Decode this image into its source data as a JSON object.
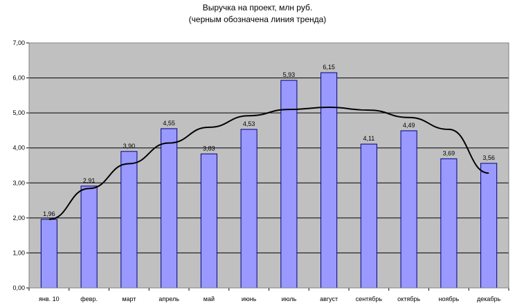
{
  "chart_data": {
    "type": "bar",
    "title": "Выручка на проект, млн руб.",
    "subtitle": "(черным обозначена линия тренда)",
    "categories": [
      "янв. 10",
      "февр.",
      "март",
      "апрель",
      "май",
      "июнь",
      "июль",
      "август",
      "сентябрь",
      "октябрь",
      "ноябрь",
      "декабрь"
    ],
    "values": [
      1.96,
      2.91,
      3.9,
      4.55,
      3.83,
      4.53,
      5.93,
      6.15,
      4.11,
      4.49,
      3.69,
      3.56
    ],
    "data_labels": [
      "1,96",
      "2,91",
      "3,90",
      "4,55",
      "3,83",
      "4,53",
      "5,93",
      "6,15",
      "4,11",
      "4,49",
      "3,69",
      "3,56"
    ],
    "y_ticks": [
      "0,00",
      "1,00",
      "2,00",
      "3,00",
      "4,00",
      "5,00",
      "6,00",
      "7,00"
    ],
    "ylim": [
      0,
      7
    ],
    "grid": true,
    "trendline": {
      "type": "polynomial-2",
      "values": [
        1.96,
        2.84,
        3.55,
        4.14,
        4.59,
        4.92,
        5.1,
        5.16,
        5.08,
        4.87,
        4.53,
        3.28
      ]
    },
    "colors": {
      "bar_fill": "#9999ff",
      "bar_stroke": "#000080",
      "plot_background": "#c0c0c0",
      "gridline": "#000000",
      "trendline": "#000000"
    }
  }
}
